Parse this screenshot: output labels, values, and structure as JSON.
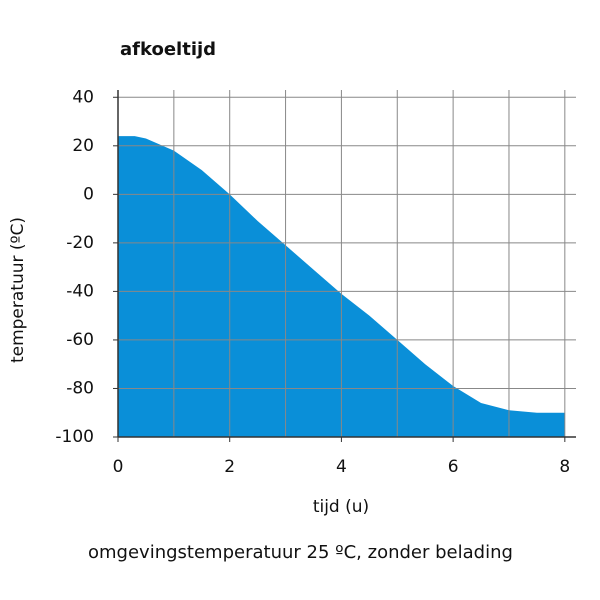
{
  "chart_data": {
    "type": "area",
    "title": "afkoeltijd",
    "subtitle": "omgevingstemperatuur 25 ºC, zonder belading",
    "x_label": "tijd (u)",
    "y_label": "temperatuur (ºC)",
    "x": [
      0,
      0.3,
      0.5,
      1,
      1.5,
      2,
      2.5,
      3,
      3.5,
      4,
      4.5,
      5,
      5.5,
      6,
      6.5,
      7,
      7.5,
      8
    ],
    "values": [
      24,
      24,
      23,
      18,
      10,
      0,
      -11,
      -21,
      -31,
      -41,
      -50,
      -60,
      -70,
      -79,
      -86,
      -89,
      -90,
      -90
    ],
    "color": "#0a8fd8",
    "xlim": [
      0,
      8.2
    ],
    "ylim": [
      -100,
      43
    ],
    "xticks": [
      0,
      2,
      4,
      6,
      8
    ],
    "minor_xticks": [
      1,
      3,
      5,
      7
    ],
    "yticks": [
      -100,
      -80,
      -60,
      -40,
      -20,
      0,
      20,
      40
    ],
    "grid": true
  }
}
